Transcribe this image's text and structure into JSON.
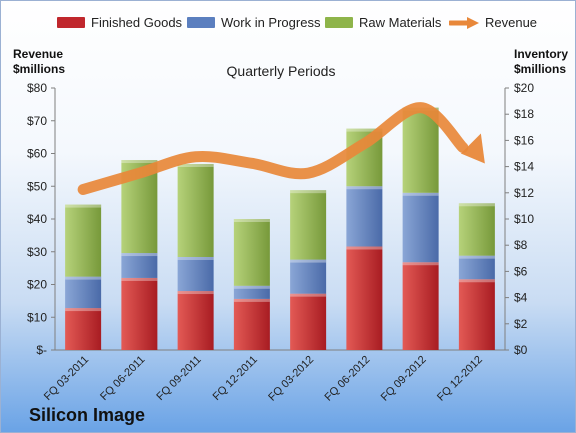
{
  "chart_data": {
    "type": "bar",
    "stacked": true,
    "title": "Quarterly Periods",
    "footer": "Silicon Image",
    "categories": [
      "FQ 03-2011",
      "FQ 06-2011",
      "FQ 09-2011",
      "FQ 12-2011",
      "FQ 03-2012",
      "FQ 06-2012",
      "FQ 09-2012",
      "FQ 12-2012"
    ],
    "series": [
      {
        "name": "Finished Goods",
        "axis": "right",
        "color": "#c0272d",
        "values": [
          3.2,
          5.5,
          4.5,
          3.9,
          4.3,
          7.9,
          6.7,
          5.4
        ]
      },
      {
        "name": "Work in Progress",
        "axis": "right",
        "color": "#5b7fbf",
        "values": [
          2.4,
          1.9,
          2.6,
          1.0,
          2.6,
          4.6,
          5.3,
          1.8
        ]
      },
      {
        "name": "Raw Materials",
        "axis": "right",
        "color": "#8eb44a",
        "values": [
          5.5,
          7.1,
          7.1,
          5.1,
          5.3,
          4.4,
          6.5,
          4.0
        ]
      },
      {
        "name": "Revenue",
        "axis": "left",
        "type": "line",
        "color": "#e8883a",
        "values": [
          49,
          54,
          59,
          57,
          54,
          63,
          74,
          60
        ]
      }
    ],
    "left_axis": {
      "label": "Revenue\n$millions",
      "ylim": [
        0,
        80
      ],
      "ticks": [
        "$-",
        "$10",
        "$20",
        "$30",
        "$40",
        "$50",
        "$60",
        "$70",
        "$80"
      ]
    },
    "right_axis": {
      "label": "Inventory\n$millions",
      "ylim": [
        0,
        20
      ],
      "ticks": [
        "$0",
        "$2",
        "$4",
        "$6",
        "$8",
        "$10",
        "$12",
        "$14",
        "$16",
        "$18",
        "$20"
      ]
    },
    "grid": false,
    "legend": "top"
  }
}
